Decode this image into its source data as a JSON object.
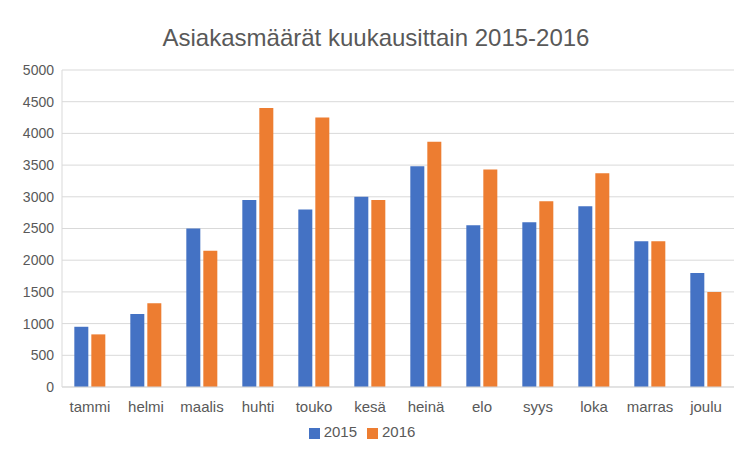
{
  "chart_data": {
    "type": "bar",
    "title": "Asiakasmäärät kuukausittain 2015-2016",
    "categories": [
      "tammi",
      "helmi",
      "maalis",
      "huhti",
      "touko",
      "kesä",
      "heinä",
      "elo",
      "syys",
      "loka",
      "marras",
      "joulu"
    ],
    "series": [
      {
        "name": "2015",
        "color": "#4472c4",
        "values": [
          950,
          1150,
          2500,
          2950,
          2800,
          3000,
          3480,
          2550,
          2600,
          2850,
          2300,
          1800
        ]
      },
      {
        "name": "2016",
        "color": "#ed7d31",
        "values": [
          830,
          1320,
          2150,
          4400,
          4250,
          2950,
          3870,
          3430,
          2930,
          3370,
          2300,
          1500
        ]
      }
    ],
    "ylim": [
      0,
      5000
    ],
    "yticks": [
      0,
      500,
      1000,
      1500,
      2000,
      2500,
      3000,
      3500,
      4000,
      4500,
      5000
    ],
    "grid": true,
    "legend": "bottom"
  }
}
